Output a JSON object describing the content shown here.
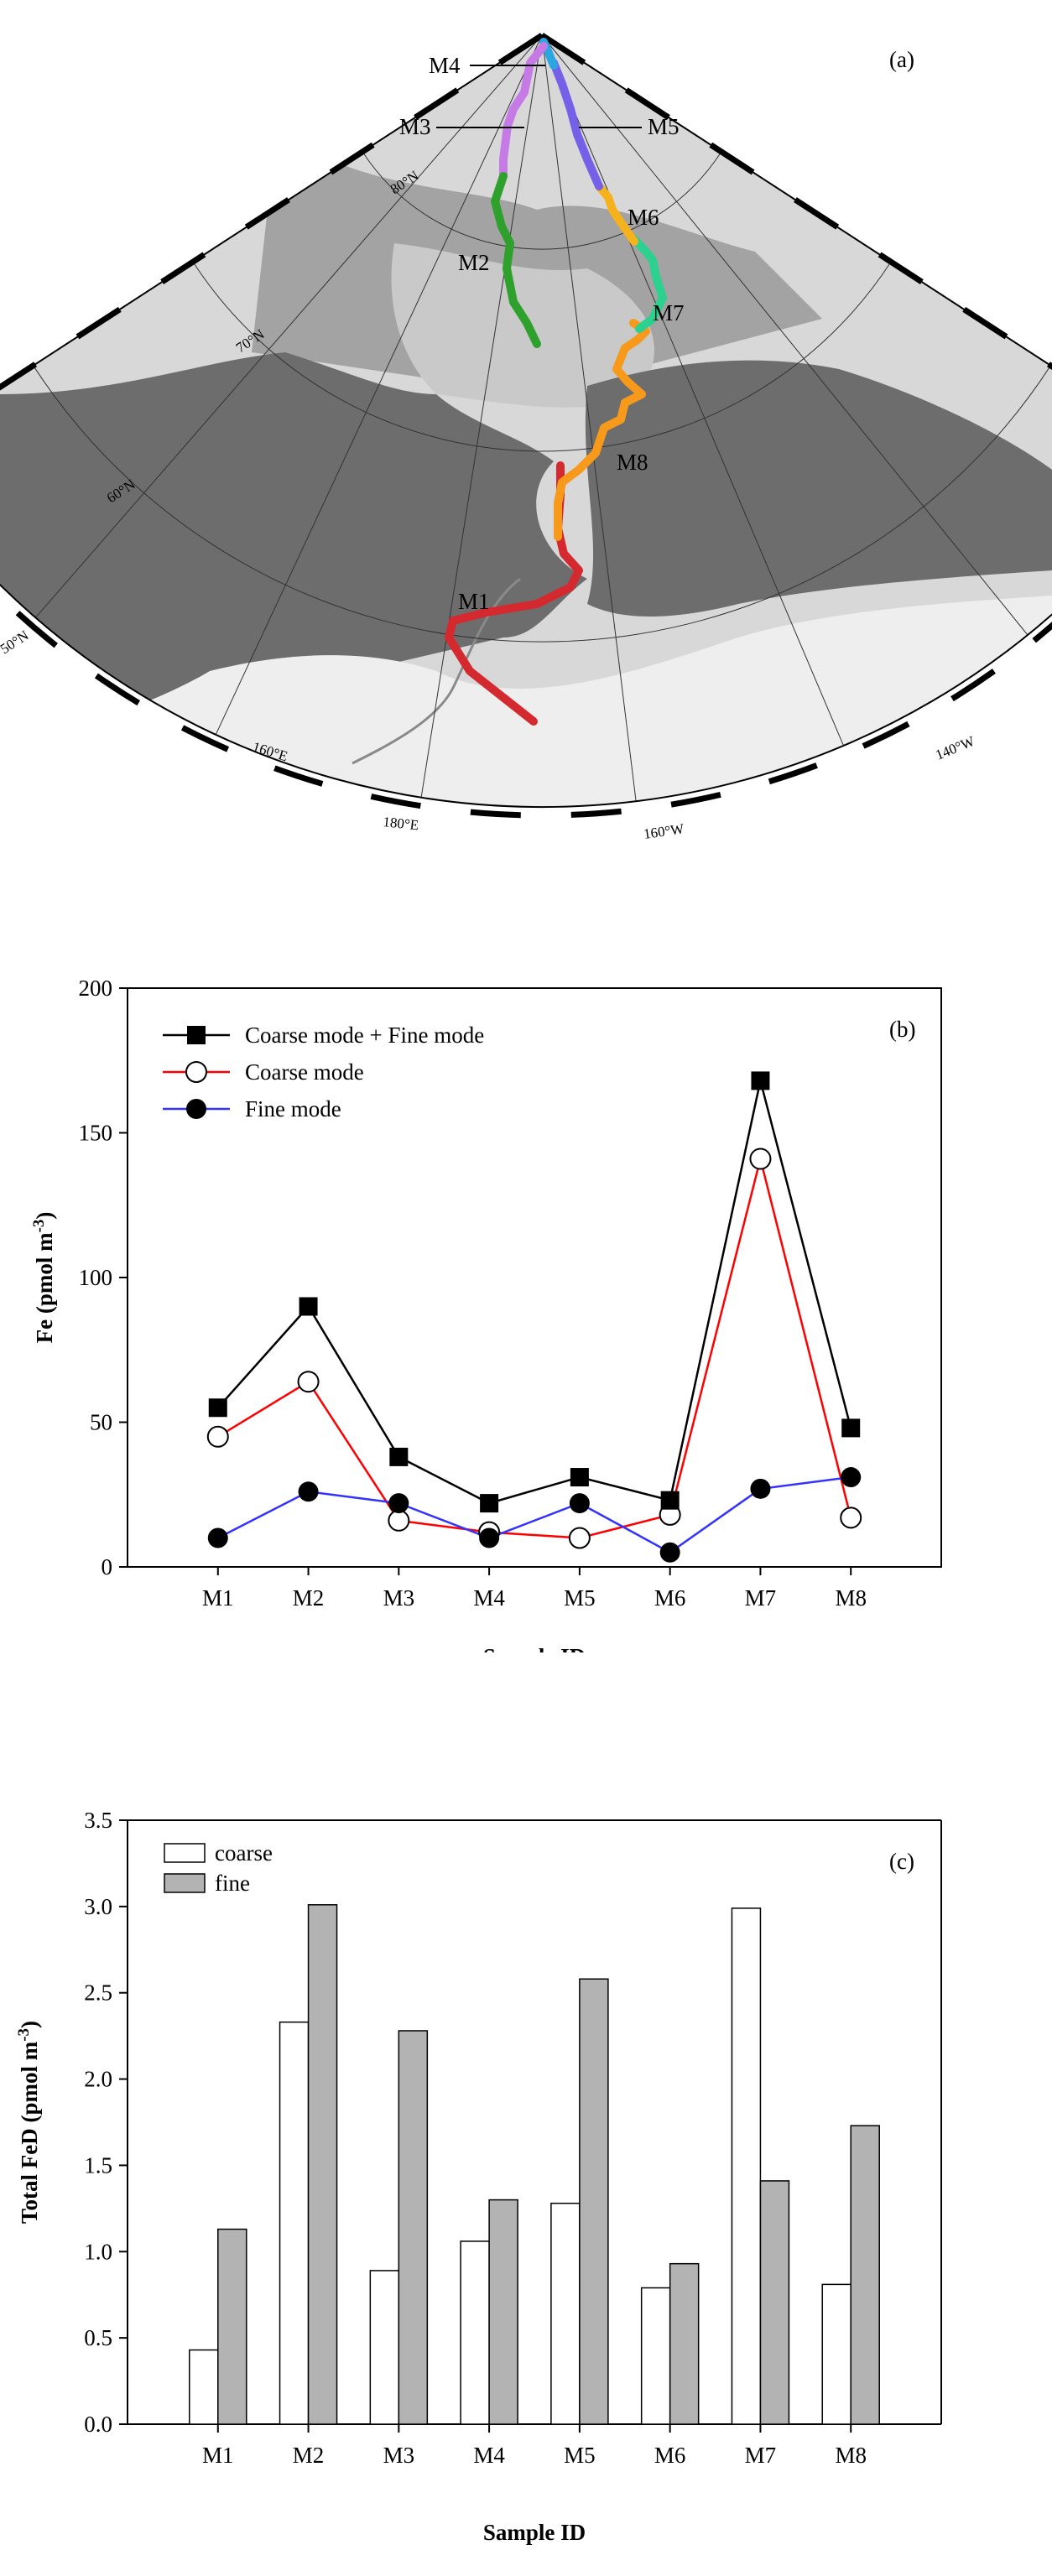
{
  "panel_a": {
    "label": "(a)",
    "lat_labels": [
      "80°N",
      "70°N",
      "60°N",
      "50°N"
    ],
    "lon_labels": [
      "160°E",
      "180°E",
      "160°W",
      "140°W"
    ],
    "track_labels": [
      "M4",
      "M3",
      "M5",
      "M6",
      "M2",
      "M7",
      "M8",
      "M1"
    ],
    "colors": {
      "M1": "#d42a2f",
      "M2": "#2ea02c",
      "M3": "#c57ae6",
      "M4": "#2aa7e0",
      "M5": "#7560e8",
      "M6": "#f5b21d",
      "M7": "#2cd18f",
      "M8": "#f79a1c",
      "land": "#6d6d6d",
      "ocean_deep": "#d8d8d8",
      "ocean_shelf": "#a3a3a3"
    }
  },
  "chart_data": [
    {
      "type": "line",
      "panel_label": "(b)",
      "categories": [
        "M1",
        "M2",
        "M3",
        "M4",
        "M5",
        "M6",
        "M7",
        "M8"
      ],
      "series": [
        {
          "name": "Coarse mode + Fine mode",
          "color": "#000000",
          "marker": "filled-square",
          "values": [
            55,
            90,
            38,
            22,
            31,
            23,
            168,
            48
          ]
        },
        {
          "name": "Coarse mode",
          "color": "#ff0000",
          "marker": "open-circle",
          "values": [
            45,
            64,
            16,
            12,
            10,
            18,
            141,
            17
          ]
        },
        {
          "name": "Fine mode",
          "color": "#3333ff",
          "marker": "filled-circle",
          "values": [
            10,
            26,
            22,
            10,
            22,
            5,
            27,
            31
          ]
        }
      ],
      "xlabel": "Sample ID",
      "ylabel": "Fe (pmol m⁻³)",
      "ylim": [
        0,
        200
      ],
      "yticks": [
        "0",
        "50",
        "100",
        "150",
        "200"
      ],
      "grid": false,
      "legend": "top-left"
    },
    {
      "type": "bar",
      "panel_label": "(c)",
      "categories": [
        "M1",
        "M2",
        "M3",
        "M4",
        "M5",
        "M6",
        "M7",
        "M8"
      ],
      "series": [
        {
          "name": "coarse",
          "color": "#ffffff",
          "values": [
            0.43,
            2.33,
            0.89,
            1.06,
            1.28,
            0.79,
            2.99,
            0.81
          ]
        },
        {
          "name": "fine",
          "color": "#b3b3b3",
          "values": [
            1.13,
            3.01,
            2.28,
            1.3,
            2.58,
            0.93,
            1.41,
            1.73
          ]
        }
      ],
      "xlabel": "Sample ID",
      "ylabel": "Total FeD (pmol m⁻³)",
      "ylim": [
        0,
        3.5
      ],
      "yticks": [
        "0.0",
        "0.5",
        "1.0",
        "1.5",
        "2.0",
        "2.5",
        "3.0",
        "3.5"
      ],
      "grid": false,
      "legend": "top-left"
    }
  ]
}
